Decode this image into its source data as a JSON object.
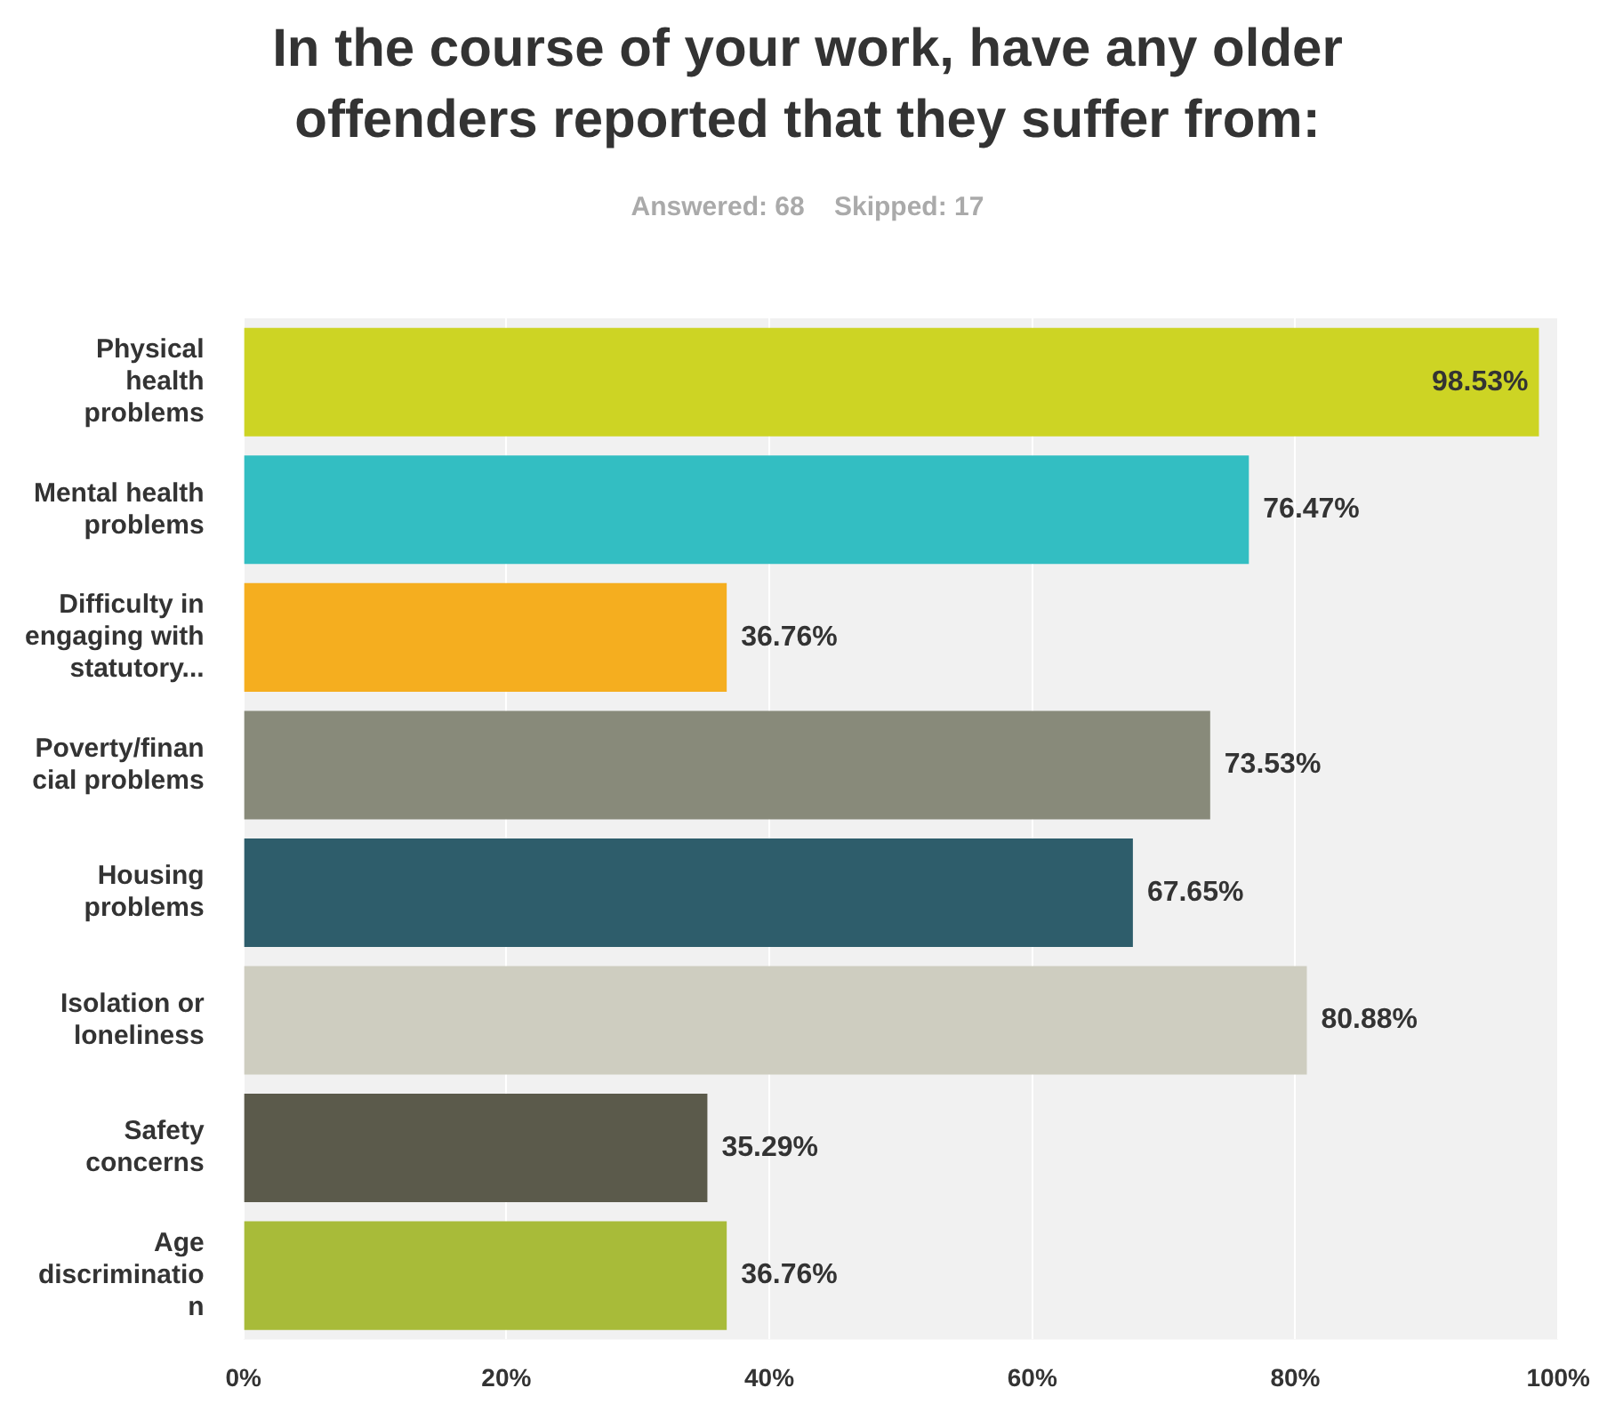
{
  "chart_data": {
    "type": "bar",
    "orientation": "horizontal",
    "title": "In the course of your work, have any older offenders reported that they suffer from:",
    "subtitle": "Answered: 68    Skipped: 17",
    "categories": [
      "Physical health problems",
      "Mental health problems",
      "Difficulty in engaging with statutory...",
      "Poverty/financial problems",
      "Housing problems",
      "Isolation or loneliness",
      "Safety concerns",
      "Age discrimination"
    ],
    "values": [
      98.53,
      76.47,
      36.76,
      73.53,
      67.65,
      80.88,
      35.29,
      36.76
    ],
    "colors": [
      "#cdd424",
      "#33bec2",
      "#f5ae1f",
      "#888a7a",
      "#2e5d6b",
      "#cecdc0",
      "#5b5a4b",
      "#a8bb39"
    ],
    "value_labels": [
      "98.53%",
      "76.47%",
      "36.76%",
      "73.53%",
      "67.65%",
      "80.88%",
      "35.29%",
      "36.76%"
    ],
    "xlim": [
      0,
      100
    ],
    "xticks": [
      {
        "value": 0,
        "label": "0%"
      },
      {
        "value": 20,
        "label": "20%"
      },
      {
        "value": 40,
        "label": "40%"
      },
      {
        "value": 60,
        "label": "60%"
      },
      {
        "value": 80,
        "label": "80%"
      },
      {
        "value": 100,
        "label": "100%"
      }
    ],
    "grid": "x",
    "legend": false
  }
}
